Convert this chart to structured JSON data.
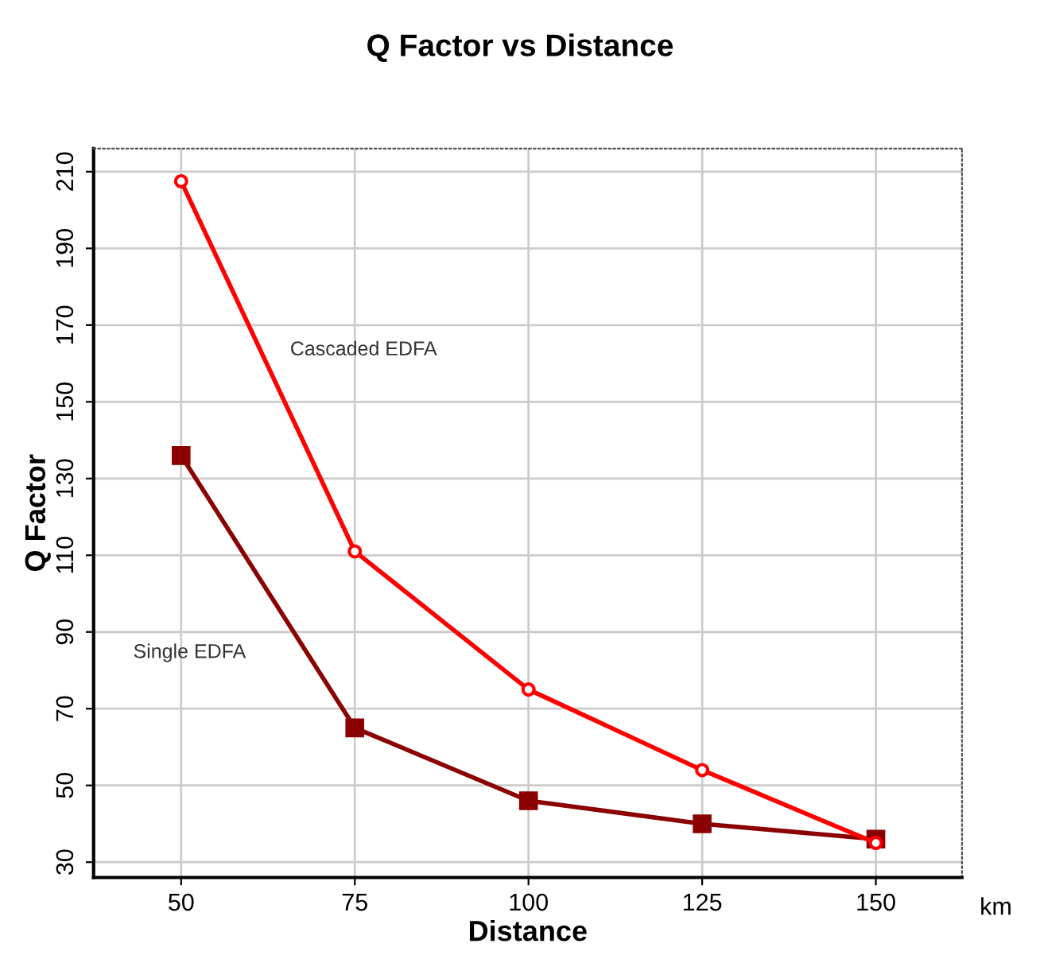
{
  "chart_data": {
    "type": "line",
    "title": "Q Factor vs Distance",
    "xlabel": "Distance",
    "ylabel": "Q Factor",
    "x": [
      50,
      75,
      100,
      125,
      150
    ],
    "series": [
      {
        "name": "Cascaded EDFA",
        "color": "#ff0000",
        "marker": "circle",
        "values": [
          207.5,
          111,
          75,
          54,
          35
        ]
      },
      {
        "name": "Single EDFA",
        "color": "#8b0000",
        "marker": "square",
        "values": [
          136,
          65,
          46,
          40,
          36
        ]
      }
    ],
    "annotations": [
      "km"
    ],
    "xlim": [
      37.4,
      162.4
    ],
    "ylim": [
      26,
      216
    ],
    "xticks": [
      50,
      75,
      100,
      125,
      150
    ],
    "yticks": [
      30,
      50,
      70,
      90,
      110,
      130,
      150,
      170,
      190,
      210
    ],
    "grid": true,
    "legend": false
  }
}
